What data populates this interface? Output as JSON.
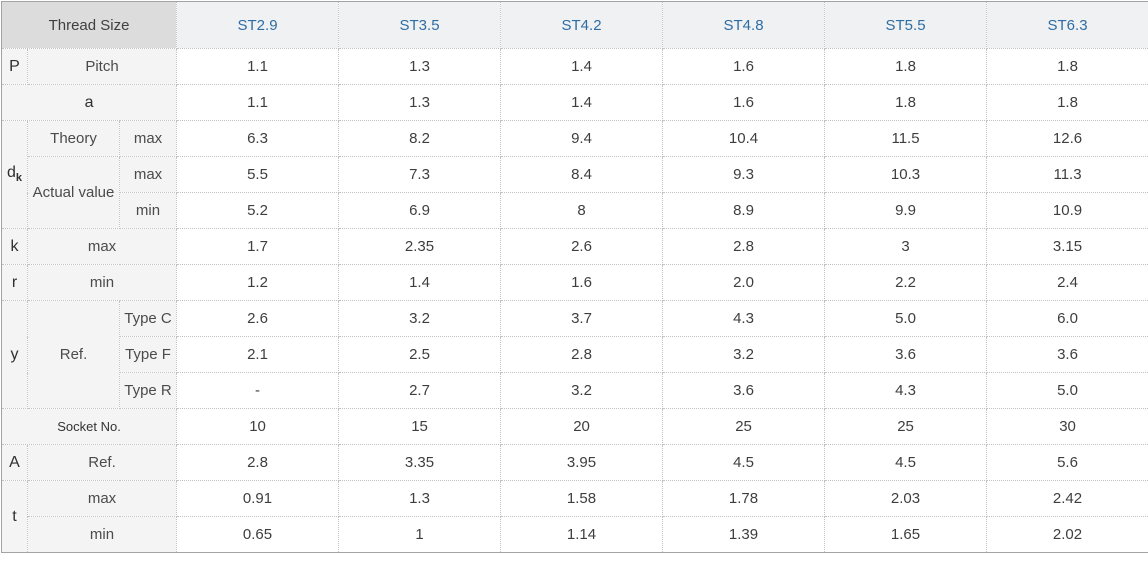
{
  "table": {
    "corner": "Thread Size",
    "thread_sizes": [
      "ST2.9",
      "ST3.5",
      "ST4.2",
      "ST4.8",
      "ST5.5",
      "ST6.3"
    ],
    "colors": {
      "header_text": "#2e6da4",
      "corner_bg": "#dcdcdc",
      "header_bg": "#f0f1f2",
      "label_bg": "#f4f4f5",
      "body_bg": "#ffffff"
    },
    "rows": {
      "pitch": {
        "symbol": "P",
        "label": "Pitch",
        "values": [
          "1.1",
          "1.3",
          "1.4",
          "1.6",
          "1.8",
          "1.8"
        ]
      },
      "a": {
        "label": "a",
        "values": [
          "1.1",
          "1.3",
          "1.4",
          "1.6",
          "1.8",
          "1.8"
        ]
      },
      "dk": {
        "symbol_main": "d",
        "symbol_sub": "k",
        "theory": {
          "label": "Theory",
          "sub": "max",
          "values": [
            "6.3",
            "8.2",
            "9.4",
            "10.4",
            "11.5",
            "12.6"
          ]
        },
        "actual_label": "Actual value",
        "actual_max": {
          "sub": "max",
          "values": [
            "5.5",
            "7.3",
            "8.4",
            "9.3",
            "10.3",
            "11.3"
          ]
        },
        "actual_min": {
          "sub": "min",
          "values": [
            "5.2",
            "6.9",
            "8",
            "8.9",
            "9.9",
            "10.9"
          ]
        }
      },
      "k": {
        "symbol": "k",
        "label": "max",
        "values": [
          "1.7",
          "2.35",
          "2.6",
          "2.8",
          "3",
          "3.15"
        ]
      },
      "r": {
        "symbol": "r",
        "label": "min",
        "values": [
          "1.2",
          "1.4",
          "1.6",
          "2.0",
          "2.2",
          "2.4"
        ]
      },
      "y": {
        "symbol": "y",
        "label": "Ref.",
        "type_c": {
          "sub": "Type C",
          "values": [
            "2.6",
            "3.2",
            "3.7",
            "4.3",
            "5.0",
            "6.0"
          ]
        },
        "type_f": {
          "sub": "Type F",
          "values": [
            "2.1",
            "2.5",
            "2.8",
            "3.2",
            "3.6",
            "3.6"
          ]
        },
        "type_r": {
          "sub": "Type R",
          "values": [
            "-",
            "2.7",
            "3.2",
            "3.6",
            "4.3",
            "5.0"
          ]
        }
      },
      "socket": {
        "label": "Socket No.",
        "values": [
          "10",
          "15",
          "20",
          "25",
          "25",
          "30"
        ]
      },
      "a_ref": {
        "symbol": "A",
        "label": "Ref.",
        "values": [
          "2.8",
          "3.35",
          "3.95",
          "4.5",
          "4.5",
          "5.6"
        ]
      },
      "t": {
        "symbol": "t",
        "max": {
          "label": "max",
          "values": [
            "0.91",
            "1.3",
            "1.58",
            "1.78",
            "2.03",
            "2.42"
          ]
        },
        "min": {
          "label": "min",
          "values": [
            "0.65",
            "1",
            "1.14",
            "1.39",
            "1.65",
            "2.02"
          ]
        }
      }
    }
  }
}
